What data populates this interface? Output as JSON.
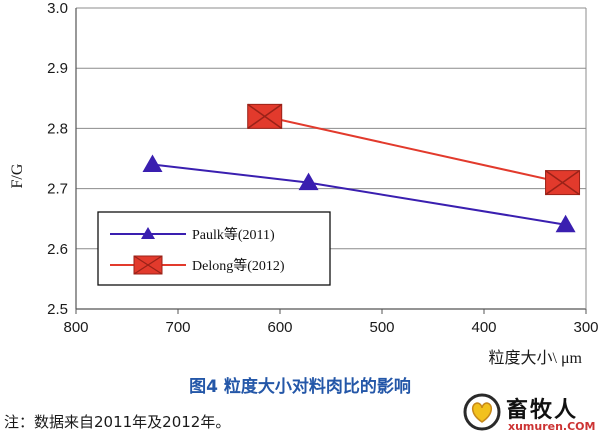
{
  "chart_data": {
    "type": "line",
    "xlabel": "粒度大小\\ μm",
    "ylabel": "F/G",
    "x_ticks": [
      "800",
      "700",
      "600",
      "500",
      "400",
      "300"
    ],
    "y_ticks": [
      "2.5",
      "2.6",
      "2.7",
      "2.8",
      "2.9",
      "3.0"
    ],
    "xlim": [
      800,
      300
    ],
    "ylim": [
      2.5,
      3.0
    ],
    "x_reversed": true,
    "grid": "horizontal",
    "legend_position": "lower-left",
    "series": [
      {
        "name": "Paulk等(2011)",
        "color": "#3a1fb0",
        "marker": "triangle",
        "x": [
          725,
          572,
          320
        ],
        "y": [
          2.74,
          2.71,
          2.64
        ]
      },
      {
        "name": "Delong等(2012)",
        "color": "#e23a2c",
        "marker": "square-x",
        "x": [
          615,
          323
        ],
        "y": [
          2.82,
          2.71
        ]
      }
    ]
  },
  "caption": "图4  粒度大小对料肉比的影响",
  "note": "注：数据来自2011年及2012年。",
  "watermark": {
    "name": "畜牧人",
    "url": "xumuren.COM"
  }
}
